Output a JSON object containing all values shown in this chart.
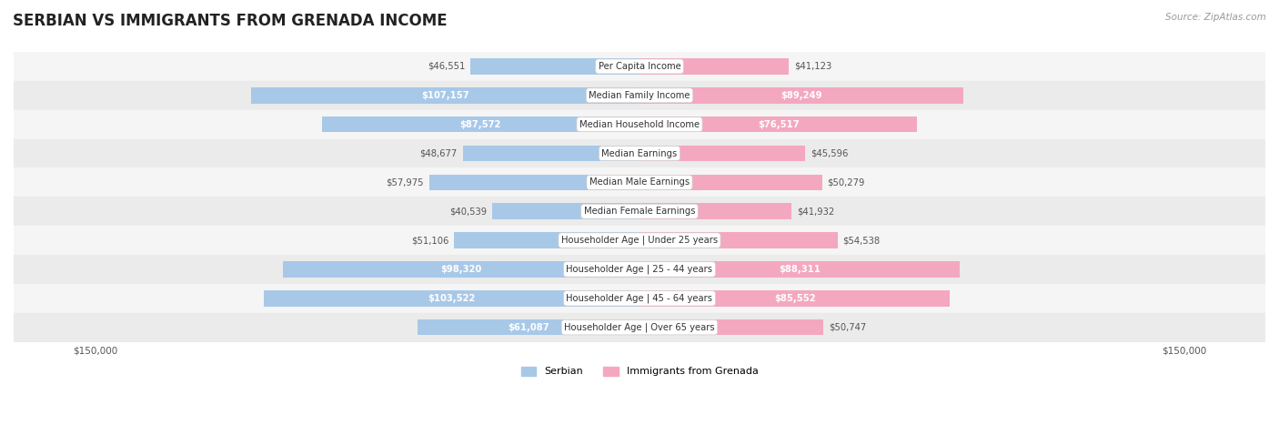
{
  "title": "SERBIAN VS IMMIGRANTS FROM GRENADA INCOME",
  "source": "Source: ZipAtlas.com",
  "categories": [
    "Per Capita Income",
    "Median Family Income",
    "Median Household Income",
    "Median Earnings",
    "Median Male Earnings",
    "Median Female Earnings",
    "Householder Age | Under 25 years",
    "Householder Age | 25 - 44 years",
    "Householder Age | 45 - 64 years",
    "Householder Age | Over 65 years"
  ],
  "serbian_values": [
    46551,
    107157,
    87572,
    48677,
    57975,
    40539,
    51106,
    98320,
    103522,
    61087
  ],
  "grenada_values": [
    41123,
    89249,
    76517,
    45596,
    50279,
    41932,
    54538,
    88311,
    85552,
    50747
  ],
  "serbian_labels": [
    "$46,551",
    "$107,157",
    "$87,572",
    "$48,677",
    "$57,975",
    "$40,539",
    "$51,106",
    "$98,320",
    "$103,522",
    "$61,087"
  ],
  "grenada_labels": [
    "$41,123",
    "$89,249",
    "$76,517",
    "$45,596",
    "$50,279",
    "$41,932",
    "$54,538",
    "$88,311",
    "$85,552",
    "$50,747"
  ],
  "serbian_color": "#a8c8e8",
  "grenada_color": "#f4a8c0",
  "max_value": 150000,
  "bar_height": 0.55,
  "row_bg_light": "#f5f5f5",
  "row_bg_dark": "#ebebeb",
  "background_color": "#ffffff",
  "title_fontsize": 12,
  "label_fontsize": 7.2,
  "category_fontsize": 7.2,
  "legend_fontsize": 8,
  "axis_label_fontsize": 7.5,
  "serbian_threshold": 60000,
  "grenada_threshold": 60000
}
